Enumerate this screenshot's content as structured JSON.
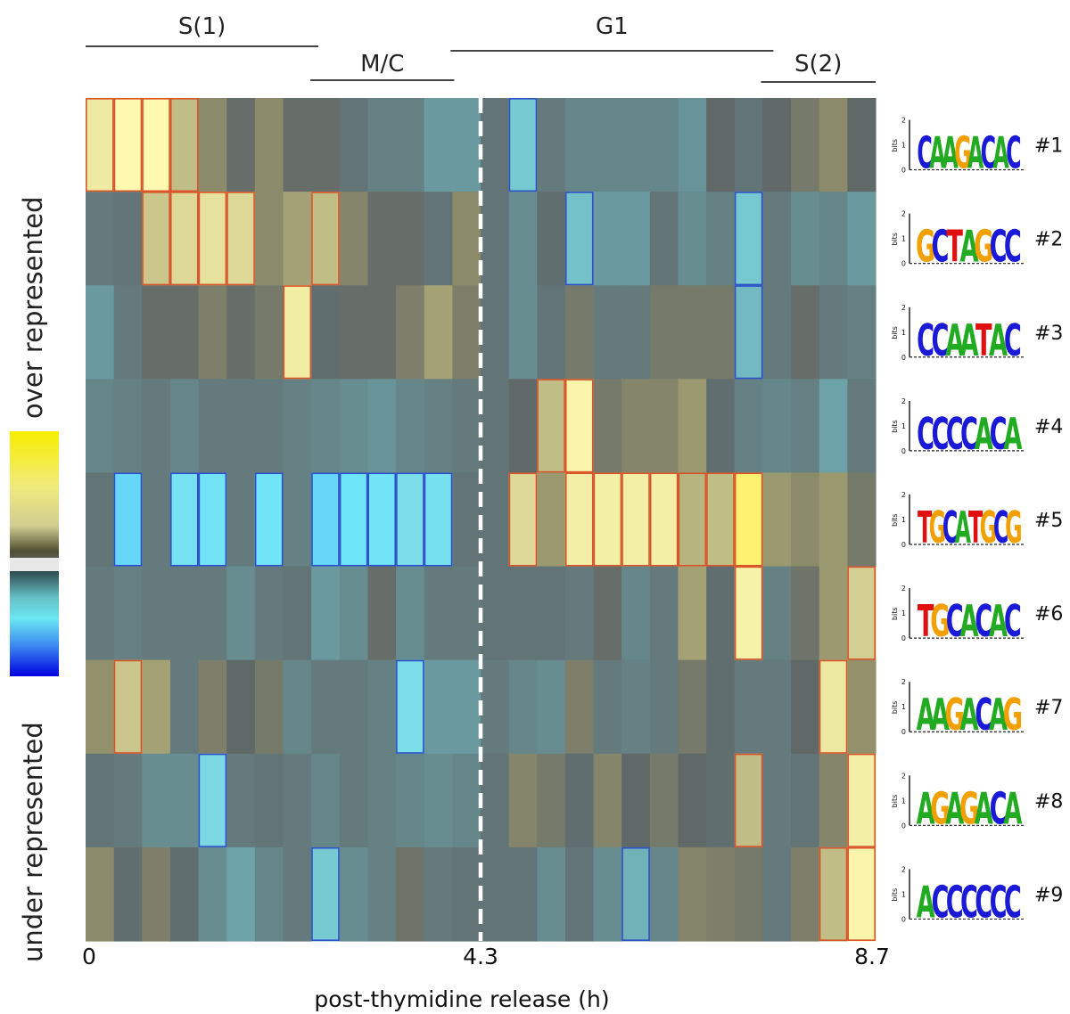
{
  "chart_data": {
    "type": "heatmap",
    "title": "",
    "xlabel": "post-thymidine release (h)",
    "x_tick_labels": [
      "0",
      "4.3",
      "8.7"
    ],
    "xlim": [
      0,
      8.7
    ],
    "colorbar": {
      "top_label": "over represented",
      "bottom_label": "under represented",
      "high_color": "#f7ee00",
      "low_color": "#0000e0"
    },
    "phases": [
      {
        "label": "S(1)",
        "start_col": 0,
        "end_col": 8
      },
      {
        "label": "M/C",
        "start_col": 8,
        "end_col": 13
      },
      {
        "label": "G1",
        "start_col": 13,
        "end_col": 24
      },
      {
        "label": "S(2)",
        "start_col": 24,
        "end_col": 28
      }
    ],
    "divider_col": 14,
    "rows": [
      {
        "label": "#1",
        "motif": "CAAGACAC"
      },
      {
        "label": "#2",
        "motif": "GCTAGCC"
      },
      {
        "label": "#3",
        "motif": "CCAATAC"
      },
      {
        "label": "#4",
        "motif": "CCCCACA"
      },
      {
        "label": "#5",
        "motif": "TGCATGCG"
      },
      {
        "label": "#6",
        "motif": "TGCACAC"
      },
      {
        "label": "#7",
        "motif": "AAGACAG"
      },
      {
        "label": "#8",
        "motif": "AGAGACA"
      },
      {
        "label": "#9",
        "motif": "ACCCCCC"
      }
    ],
    "motif_logo_axis": {
      "label": "bits",
      "ticks": [
        "2",
        "1",
        "0"
      ]
    },
    "values": [
      [
        1.8,
        2.4,
        2.4,
        1.2,
        0.6,
        0.1,
        0.6,
        0.1,
        0.1,
        -0.2,
        -0.4,
        -0.4,
        -0.8,
        -0.8,
        -0.2,
        -1.4,
        -0.3,
        -0.5,
        -0.5,
        -0.5,
        -0.5,
        -0.7,
        0.0,
        -0.2,
        0.0,
        0.3,
        0.6,
        0.0
      ],
      [
        -0.3,
        -0.2,
        1.3,
        1.5,
        1.6,
        1.5,
        0.6,
        0.9,
        1.2,
        0.5,
        0.1,
        0.1,
        -0.2,
        0.6,
        -0.2,
        -0.6,
        -0.1,
        -1.3,
        -0.8,
        -0.8,
        -0.2,
        -0.6,
        -0.4,
        -1.4,
        -0.3,
        -0.6,
        -0.5,
        -0.8
      ],
      [
        -0.8,
        -0.3,
        0.1,
        0.1,
        0.4,
        0.1,
        0.3,
        1.9,
        -0.1,
        0.1,
        0.1,
        0.4,
        0.9,
        0.4,
        -0.2,
        -0.6,
        -0.2,
        0.3,
        -0.3,
        -0.3,
        0.3,
        0.3,
        0.3,
        -1.2,
        -0.3,
        0.1,
        -0.3,
        -0.4
      ],
      [
        -0.5,
        -0.4,
        -0.3,
        -0.5,
        -0.3,
        -0.3,
        -0.3,
        -0.4,
        -0.5,
        -0.6,
        -0.7,
        -0.5,
        -0.4,
        -0.3,
        -0.2,
        0.0,
        1.2,
        2.2,
        0.3,
        0.5,
        0.5,
        0.8,
        -0.1,
        -0.4,
        -0.5,
        -0.4,
        -0.9,
        -0.3
      ],
      [
        -0.2,
        -2.6,
        -0.3,
        -2.1,
        -2.3,
        -0.3,
        -2.4,
        -0.4,
        -2.6,
        -2.5,
        -2.4,
        -1.8,
        -2.0,
        -0.2,
        -0.2,
        1.5,
        0.8,
        2.0,
        2.0,
        2.0,
        2.0,
        1.1,
        1.2,
        2.7,
        0.8,
        0.6,
        0.8,
        0.3
      ],
      [
        -0.3,
        -0.4,
        -0.3,
        -0.3,
        -0.3,
        -0.6,
        -0.3,
        -0.2,
        -0.8,
        -0.6,
        0.1,
        -0.6,
        -0.3,
        -0.3,
        -0.2,
        -0.2,
        -0.2,
        -0.3,
        0.1,
        -0.5,
        -0.3,
        0.9,
        -0.1,
        2.1,
        -0.4,
        0.2,
        0.8,
        1.4
      ],
      [
        0.7,
        1.3,
        0.9,
        -0.3,
        0.4,
        0.0,
        0.3,
        -0.5,
        -0.3,
        -0.3,
        -0.4,
        -1.8,
        -0.8,
        -0.8,
        -0.3,
        -0.5,
        -0.6,
        0.4,
        -0.3,
        -0.4,
        -0.3,
        0.3,
        -0.1,
        -0.3,
        -0.3,
        0.0,
        1.7,
        0.7
      ],
      [
        -0.2,
        -0.3,
        -0.6,
        -0.6,
        -1.6,
        -0.3,
        -0.2,
        -0.3,
        -0.5,
        -0.3,
        -0.4,
        -0.5,
        -0.6,
        -0.5,
        -0.2,
        0.5,
        0.3,
        -0.1,
        0.5,
        0.0,
        0.3,
        0.0,
        -0.1,
        1.2,
        -0.3,
        -0.2,
        0.5,
        2.0
      ],
      [
        0.6,
        -0.1,
        0.4,
        -0.1,
        -0.6,
        -0.9,
        -0.5,
        -0.3,
        -1.4,
        -0.6,
        -0.4,
        0.2,
        -0.3,
        -0.2,
        -0.2,
        -0.2,
        -0.6,
        -0.2,
        -0.6,
        -1.1,
        -0.5,
        0.5,
        0.4,
        0.3,
        -0.3,
        0.4,
        1.2,
        2.2
      ]
    ],
    "value_range": [
      -3,
      3
    ]
  }
}
